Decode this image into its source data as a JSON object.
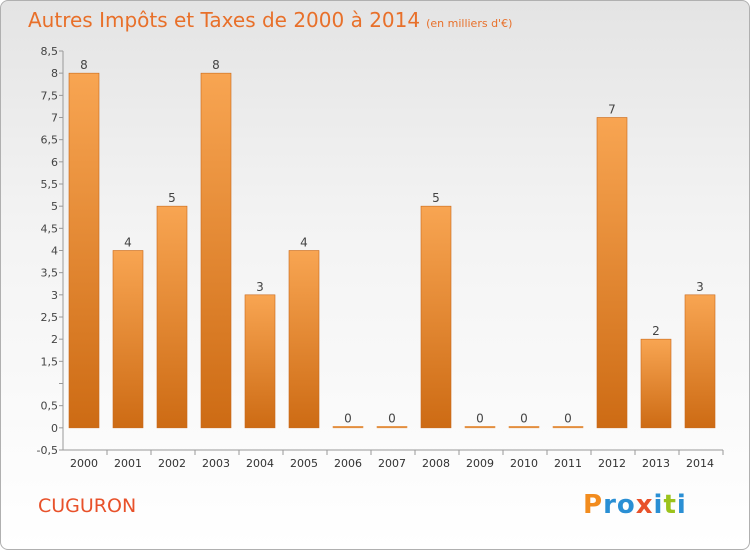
{
  "header": {
    "title": "Autres Impôts et Taxes de 2000 à 2014",
    "unit": "(en milliers d'€)"
  },
  "footer": {
    "commune": "CUGURON",
    "logo": "Proxiti",
    "logo_colors": [
      "#f28c1e",
      "#2a8fd4",
      "#2a8fd4",
      "#e8512a",
      "#2a8fd4",
      "#9cc31c",
      "#2a8fd4"
    ]
  },
  "colors": {
    "bar_light": "#f8a552",
    "bar_dark": "#cd6b14",
    "title": "#e8702a"
  },
  "chart_data": {
    "type": "bar",
    "categories": [
      "2000",
      "2001",
      "2002",
      "2003",
      "2004",
      "2005",
      "2006",
      "2007",
      "2008",
      "2009",
      "2010",
      "2011",
      "2012",
      "2013",
      "2014"
    ],
    "values": [
      8,
      4,
      5,
      8,
      3,
      4,
      0,
      0,
      5,
      0,
      0,
      0,
      7,
      2,
      3
    ],
    "data_labels": [
      "8",
      "4",
      "5",
      "8",
      "3",
      "4",
      "0",
      "0",
      "5",
      "0",
      "0",
      "0",
      "7",
      "2",
      "3"
    ],
    "y_ticks": [
      -0.5,
      0,
      0.5,
      1,
      1.5,
      2,
      2.5,
      3,
      3.5,
      4,
      4.5,
      5,
      5.5,
      6,
      6.5,
      7,
      7.5,
      8,
      8.5
    ],
    "y_tick_labels": [
      "-0,5",
      "0",
      "0,5",
      "",
      "1,5",
      "2",
      "2,5",
      "3",
      "3,5",
      "4",
      "4,5",
      "5",
      "5,5",
      "6",
      "6,5",
      "7",
      "7,5",
      "8",
      "8,5"
    ],
    "ylim": [
      -0.5,
      8.5
    ],
    "grid": false
  }
}
